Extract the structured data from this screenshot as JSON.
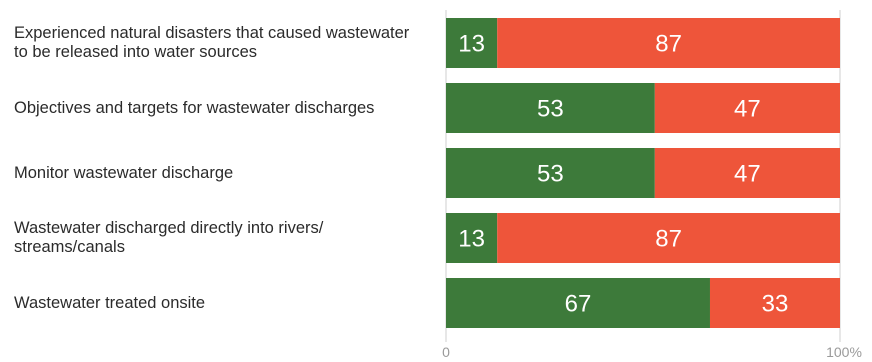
{
  "chart_data": {
    "type": "bar",
    "orientation": "horizontal",
    "stacked": true,
    "categories": [
      "Experienced natural disasters that caused wastewater to be released into water sources",
      "Objectives and targets for wastewater discharges",
      "Monitor wastewater discharge",
      "Wastewater discharged directly into rivers/ streams/canals",
      "Wastewater treated onsite"
    ],
    "series": [
      {
        "values": [
          13,
          53,
          53,
          13,
          67
        ],
        "color": "#3d7a3a"
      },
      {
        "values": [
          87,
          47,
          47,
          87,
          33
        ],
        "color": "#ee553a"
      }
    ],
    "xlim": [
      0,
      100
    ],
    "x_ticks": [
      "0",
      "100%"
    ],
    "title": "",
    "xlabel": "",
    "ylabel": "",
    "grid": false,
    "legend": "none"
  }
}
